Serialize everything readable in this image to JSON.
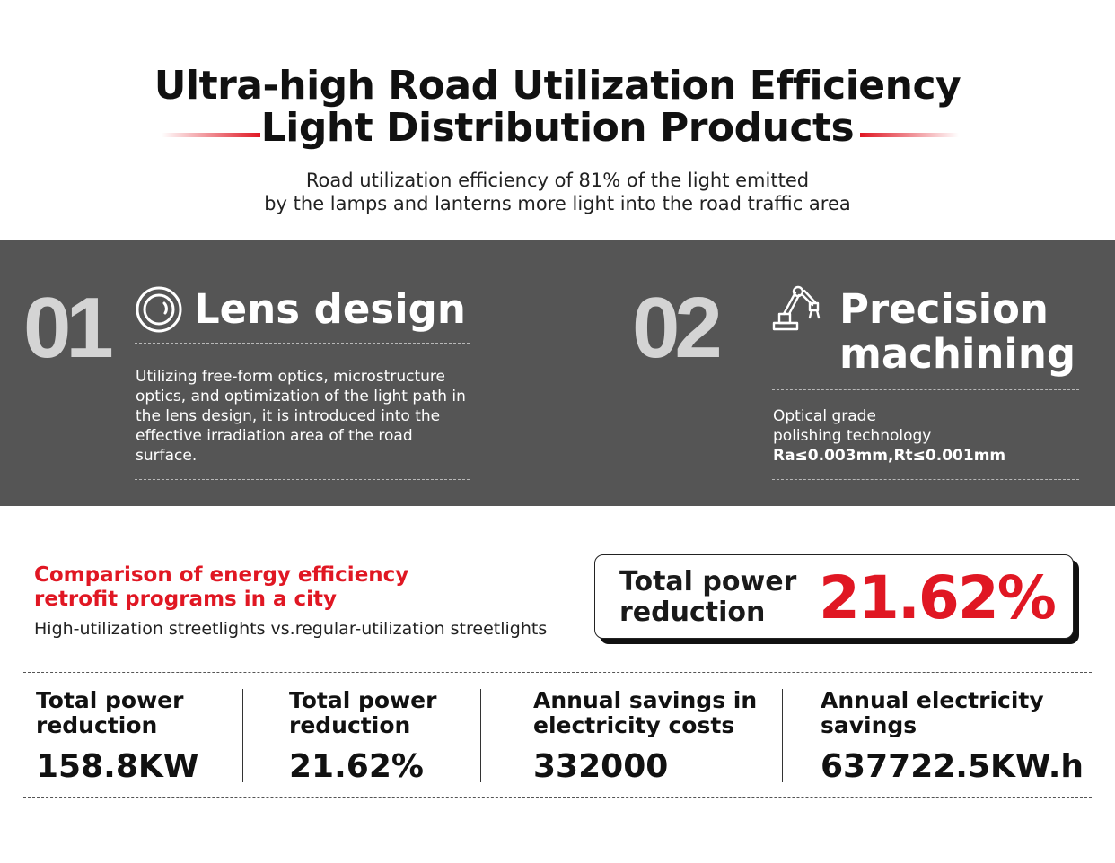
{
  "header": {
    "title_line1": "Ultra-high Road Utilization Efficiency",
    "title_line2": "Light Distribution Products",
    "subtitle_line1": "Road utilization efficiency of 81% of the light emitted",
    "subtitle_line2": "by the lamps and lanterns more light into the road traffic area",
    "accent_color": "#e01723"
  },
  "features": [
    {
      "number": "01",
      "icon": "lens-icon",
      "title": "Lens design",
      "description": "Utilizing free-form optics, microstructure optics, and optimization of the light path in the lens design, it is introduced into the effective irradiation area of the road surface."
    },
    {
      "number": "02",
      "icon": "robotic-arm-icon",
      "title_line1": "Precision",
      "title_line2": "machining",
      "line1": "Optical grade",
      "line2": "polishing technology",
      "spec": "Ra≤0.003mm,Rt≤0.001mm"
    }
  ],
  "comparison": {
    "title_line1": "Comparison of energy efficiency",
    "title_line2": "retrofit programs in a city",
    "subtitle": "High-utilization streetlights vs.regular-utilization streetlights",
    "highlight_label_line1": "Total power",
    "highlight_label_line2": "reduction",
    "highlight_value": "21.62%"
  },
  "stats": [
    {
      "label_line1": "Total power",
      "label_line2": "reduction",
      "value": "158.8KW"
    },
    {
      "label_line1": "Total power",
      "label_line2": "reduction",
      "value": "21.62%"
    },
    {
      "label_line1": "Annual savings in",
      "label_line2": "electricity costs",
      "value": "332000"
    },
    {
      "label_line1": "Annual electricity",
      "label_line2": "savings",
      "value": "637722.5KW.h"
    }
  ]
}
